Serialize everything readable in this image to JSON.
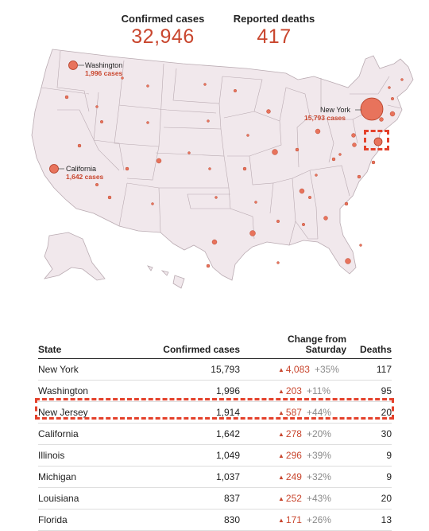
{
  "totals": {
    "confirmed_label": "Confirmed cases",
    "confirmed_value": "32,946",
    "deaths_label": "Reported deaths",
    "deaths_value": "417"
  },
  "colors": {
    "accent": "#c9462e",
    "state_fill": "#f1e8ec",
    "state_stroke": "#b9aab1",
    "highlight": "#e4412b"
  },
  "chart_data": {
    "type": "table",
    "map_labels": [
      {
        "state": "Washington",
        "value": "1,996 cases"
      },
      {
        "state": "New York",
        "value": "15,793 cases"
      },
      {
        "state": "California",
        "value": "1,642 cases"
      }
    ],
    "headers": {
      "state": "State",
      "confirmed": "Confirmed cases",
      "change_line1": "Change from",
      "change_line2": "Saturday",
      "deaths": "Deaths"
    },
    "rows": [
      {
        "state": "New York",
        "confirmed": "15,793",
        "change": "4,083",
        "pct": "+35%",
        "deaths": "117"
      },
      {
        "state": "Washington",
        "confirmed": "1,996",
        "change": "203",
        "pct": "+11%",
        "deaths": "95"
      },
      {
        "state": "New Jersey",
        "confirmed": "1,914",
        "change": "587",
        "pct": "+44%",
        "deaths": "20"
      },
      {
        "state": "California",
        "confirmed": "1,642",
        "change": "278",
        "pct": "+20%",
        "deaths": "30"
      },
      {
        "state": "Illinois",
        "confirmed": "1,049",
        "change": "296",
        "pct": "+39%",
        "deaths": "9"
      },
      {
        "state": "Michigan",
        "confirmed": "1,037",
        "change": "249",
        "pct": "+32%",
        "deaths": "9"
      },
      {
        "state": "Louisiana",
        "confirmed": "837",
        "change": "252",
        "pct": "+43%",
        "deaths": "20"
      },
      {
        "state": "Florida",
        "confirmed": "830",
        "change": "171",
        "pct": "+26%",
        "deaths": "13"
      }
    ],
    "highlighted_state": "New Jersey"
  }
}
